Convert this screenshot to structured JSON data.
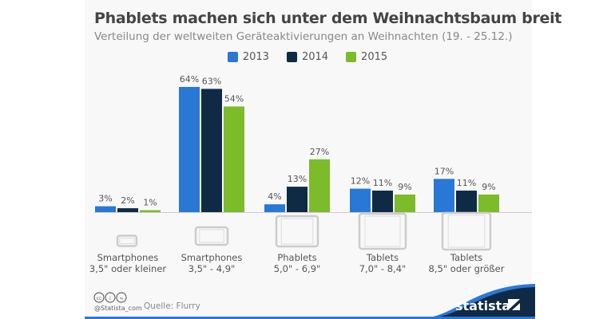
{
  "title": "Phablets machen sich unter dem Weihnachtsbaum breit",
  "subtitle": "Verteilung der weltweiten Geräteaktivierungen an Weihnachten (19. - 25.12.)",
  "footer": {
    "handle": "@Statista_com",
    "source": "Quelle: Flurry",
    "brand": "statista",
    "license_icons": [
      "cc-icon",
      "by-icon",
      "nd-icon"
    ]
  },
  "chart_data": {
    "type": "bar",
    "categories": [
      "Smartphones\n3,5\" oder kleiner",
      "Smartphones\n3,5\" - 4,9\"",
      "Phablets\n5,0\" - 6,9\"",
      "Tablets\n7,0\" - 8,4\"",
      "Tablets\n8,5\" oder größer"
    ],
    "series": [
      {
        "name": "2013",
        "color": "#2a78d6",
        "values": [
          3,
          64,
          4,
          12,
          17
        ]
      },
      {
        "name": "2014",
        "color": "#0f2a44",
        "values": [
          2,
          63,
          13,
          11,
          11
        ]
      },
      {
        "name": "2015",
        "color": "#7cbb2a",
        "values": [
          1,
          54,
          27,
          9,
          9
        ]
      }
    ],
    "value_suffix": "%",
    "ylim": [
      0,
      64
    ],
    "legend_position": "top-center",
    "grid": false
  }
}
